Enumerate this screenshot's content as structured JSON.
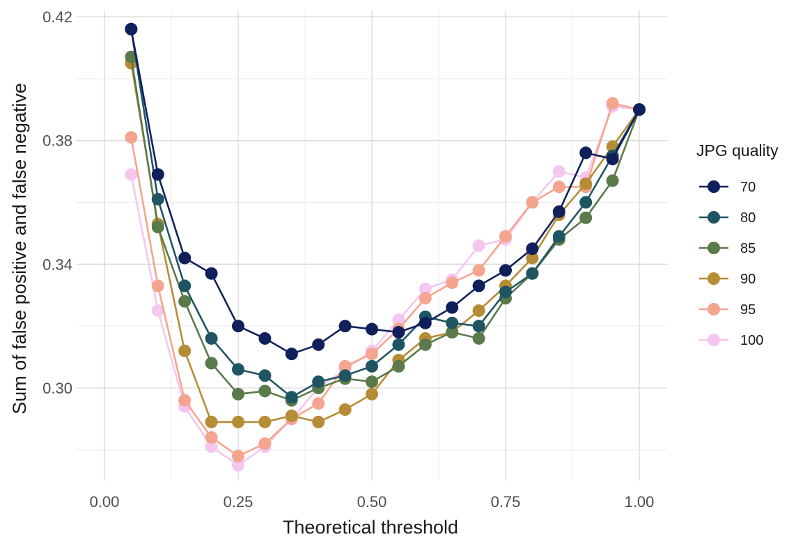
{
  "chart_data": {
    "type": "line",
    "xlabel": "Theoretical threshold",
    "ylabel": "Sum of false positive and false negative",
    "xlim": [
      0.0,
      1.0
    ],
    "ylim": [
      0.272,
      0.424
    ],
    "x_ticks": [
      0.0,
      0.25,
      0.5,
      0.75,
      1.0
    ],
    "x_tick_labels": [
      "0.00",
      "0.25",
      "0.50",
      "0.75",
      "1.00"
    ],
    "y_ticks": [
      0.3,
      0.34,
      0.38,
      0.42
    ],
    "y_tick_labels": [
      "0.30",
      "0.34",
      "0.38",
      "0.42"
    ],
    "grid": true,
    "legend": {
      "title": "JPG quality",
      "placement": "right"
    },
    "x": [
      0.05,
      0.1,
      0.15,
      0.2,
      0.25,
      0.3,
      0.35,
      0.4,
      0.45,
      0.5,
      0.55,
      0.6,
      0.65,
      0.7,
      0.75,
      0.8,
      0.85,
      0.9,
      0.95,
      1.0
    ],
    "series": [
      {
        "name": "100",
        "color": "#f5c7f0",
        "values": [
          0.369,
          0.325,
          0.294,
          0.281,
          0.275,
          0.281,
          0.29,
          0.3,
          0.306,
          0.312,
          0.322,
          0.332,
          0.335,
          0.346,
          0.348,
          0.36,
          0.37,
          0.368,
          0.391,
          0.39
        ]
      },
      {
        "name": "95",
        "color": "#f5a48e",
        "values": [
          0.381,
          0.333,
          0.296,
          0.284,
          0.278,
          0.282,
          0.29,
          0.295,
          0.307,
          0.311,
          0.319,
          0.329,
          0.334,
          0.338,
          0.349,
          0.36,
          0.365,
          0.365,
          0.392,
          0.39
        ]
      },
      {
        "name": "90",
        "color": "#b68c35",
        "values": [
          0.405,
          0.353,
          0.312,
          0.289,
          0.289,
          0.289,
          0.291,
          0.289,
          0.293,
          0.298,
          0.309,
          0.316,
          0.318,
          0.325,
          0.333,
          0.342,
          0.356,
          0.366,
          0.378,
          0.39
        ]
      },
      {
        "name": "85",
        "color": "#5a7a4a",
        "values": [
          0.407,
          0.352,
          0.328,
          0.308,
          0.298,
          0.299,
          0.296,
          0.3,
          0.303,
          0.302,
          0.307,
          0.314,
          0.318,
          0.316,
          0.329,
          0.337,
          0.348,
          0.355,
          0.367,
          0.39
        ]
      },
      {
        "name": "80",
        "color": "#1f5562",
        "values": [
          0.416,
          0.361,
          0.333,
          0.316,
          0.306,
          0.304,
          0.297,
          0.302,
          0.304,
          0.307,
          0.314,
          0.323,
          0.321,
          0.32,
          0.331,
          0.337,
          0.349,
          0.36,
          0.375,
          0.39
        ]
      },
      {
        "name": "70",
        "color": "#10205c",
        "values": [
          0.416,
          0.369,
          0.342,
          0.337,
          0.32,
          0.316,
          0.311,
          0.314,
          0.32,
          0.319,
          0.318,
          0.321,
          0.326,
          0.333,
          0.338,
          0.345,
          0.357,
          0.376,
          0.374,
          0.39
        ]
      }
    ],
    "legend_order": [
      "70",
      "80",
      "85",
      "90",
      "95",
      "100"
    ]
  }
}
